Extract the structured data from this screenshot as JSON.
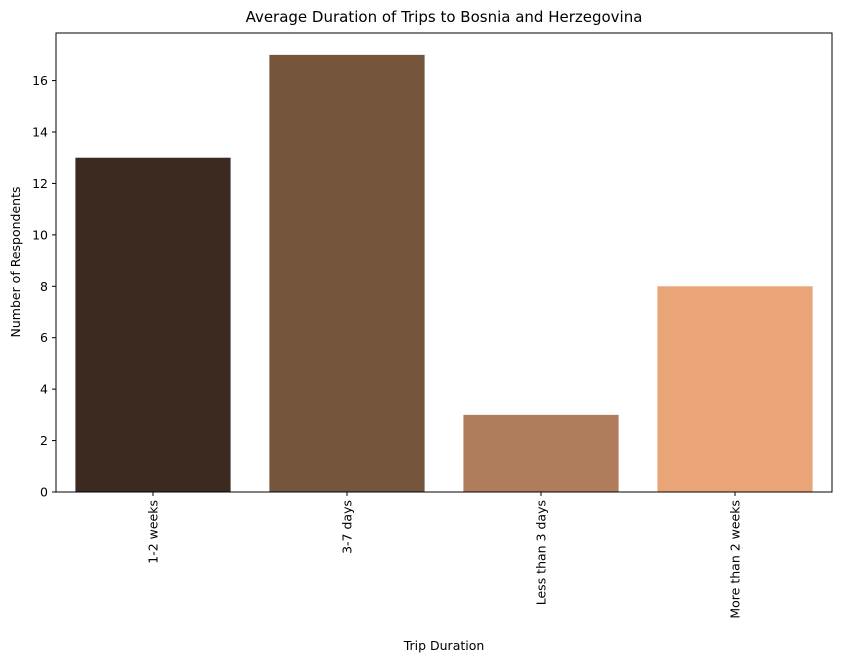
{
  "chart_data": {
    "type": "bar",
    "title": "Average Duration of Trips to Bosnia and Herzegovina",
    "xlabel": "Trip Duration",
    "ylabel": "Number of Respondents",
    "categories": [
      "1-2 weeks",
      "3-7 days",
      "Less than 3 days",
      "More than 2 weeks"
    ],
    "values": [
      13,
      17,
      3,
      8
    ],
    "colors": [
      "#3c2a20",
      "#76553d",
      "#b07d5c",
      "#e9a578"
    ],
    "ylim": [
      0,
      17.85
    ],
    "yticks": [
      0,
      2,
      4,
      6,
      8,
      10,
      12,
      14,
      16
    ],
    "grid": false,
    "x_tick_rotation": 90
  }
}
